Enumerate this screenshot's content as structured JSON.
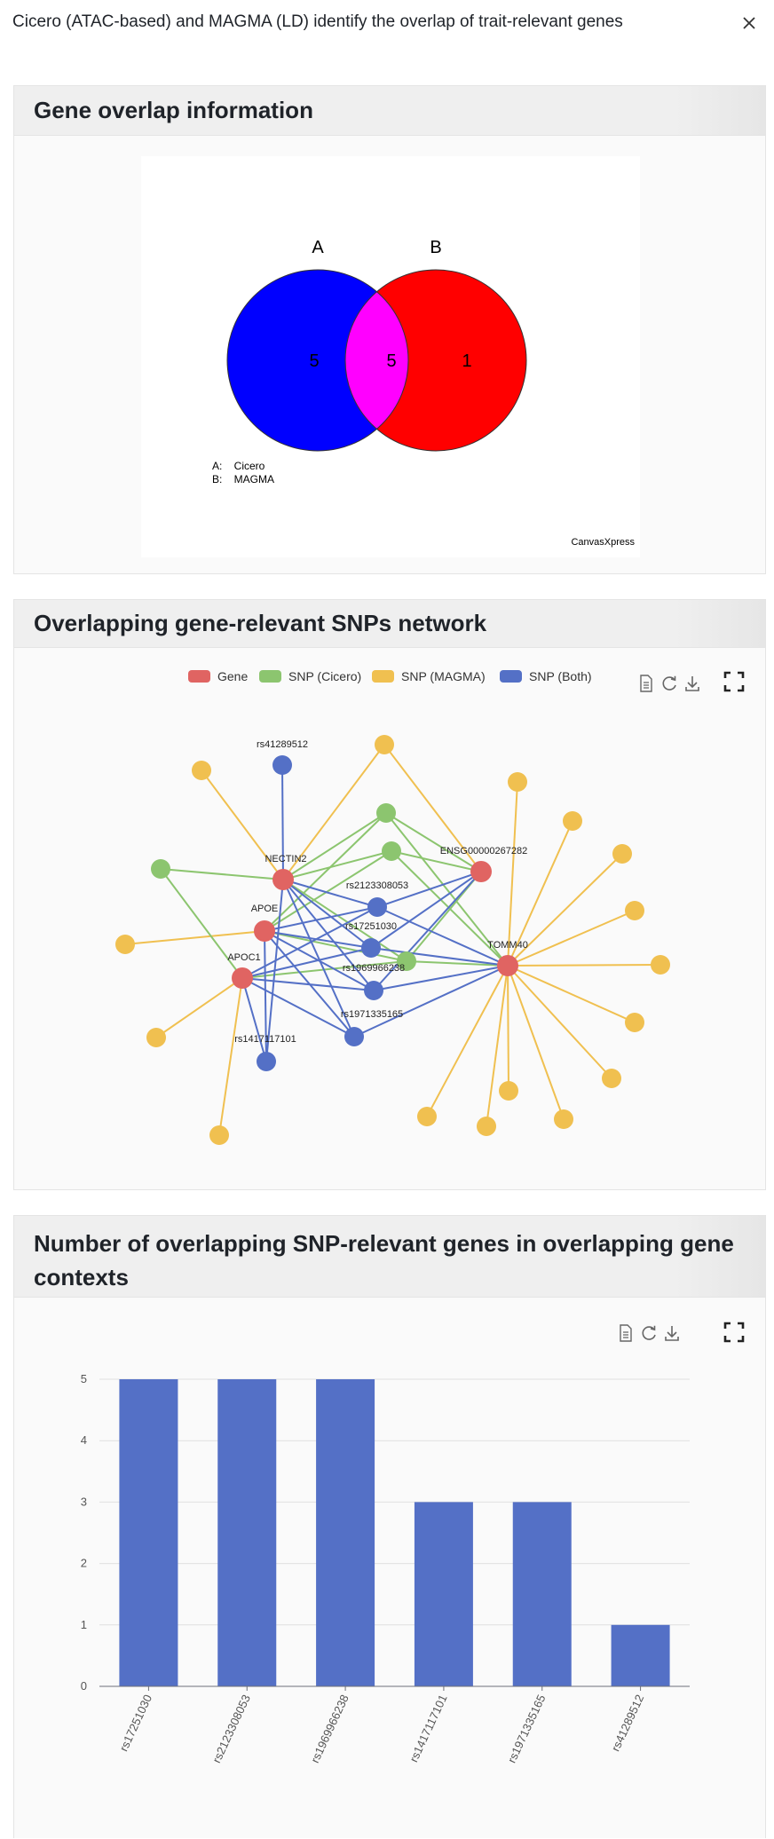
{
  "modal": {
    "title": "Cicero (ATAC-based) and MAGMA (LD) identify the overlap of trait-relevant genes"
  },
  "venn_section": {
    "title": "Gene overlap information",
    "venn": {
      "set_a_label": "A",
      "set_b_label": "B",
      "only_a": "5",
      "both": "5",
      "only_b": "1",
      "legend_a": "A:    Cicero",
      "legend_b": "B:    MAGMA",
      "brand": "CanvasXpress",
      "colors": {
        "a": "#0000ff",
        "b": "#ff0000",
        "overlap": "#ff00ff"
      }
    }
  },
  "network_section": {
    "title": "Overlapping gene-relevant SNPs network",
    "legend": [
      {
        "label": "Gene",
        "color": "#e06462"
      },
      {
        "label": "SNP (Cicero)",
        "color": "#8cc56f"
      },
      {
        "label": "SNP (MAGMA)",
        "color": "#f0c050"
      },
      {
        "label": "SNP (Both)",
        "color": "#5470c6"
      }
    ],
    "node_labels": {
      "nectin2": "NECTIN2",
      "apoe": "APOE",
      "apoc1": "APOC1",
      "tomm40": "TOMM40",
      "ensg": "ENSG00000267282",
      "rs41289512": "rs41289512",
      "rs2123308053": "rs2123308053",
      "rs17251030": "rs17251030",
      "rs1969966238": "rs1969966238",
      "rs1971335165": "rs1971335165",
      "rs1417117101": "rs1417117101"
    }
  },
  "bar_section": {
    "title_line1": "Number of overlapping SNP-relevant genes in overlapping gene",
    "title_line2": "contexts"
  },
  "chart_data": {
    "type": "bar",
    "categories": [
      "rs17251030",
      "rs2123308053",
      "rs1969966238",
      "rs1417117101",
      "rs1971335165",
      "rs41289512"
    ],
    "values": [
      5,
      5,
      5,
      3,
      3,
      1
    ],
    "ylim": [
      0,
      5
    ],
    "yticks": [
      0,
      1,
      2,
      3,
      4,
      5
    ],
    "xlabel": "",
    "ylabel": "",
    "grid": true,
    "color": "#5470c6"
  }
}
